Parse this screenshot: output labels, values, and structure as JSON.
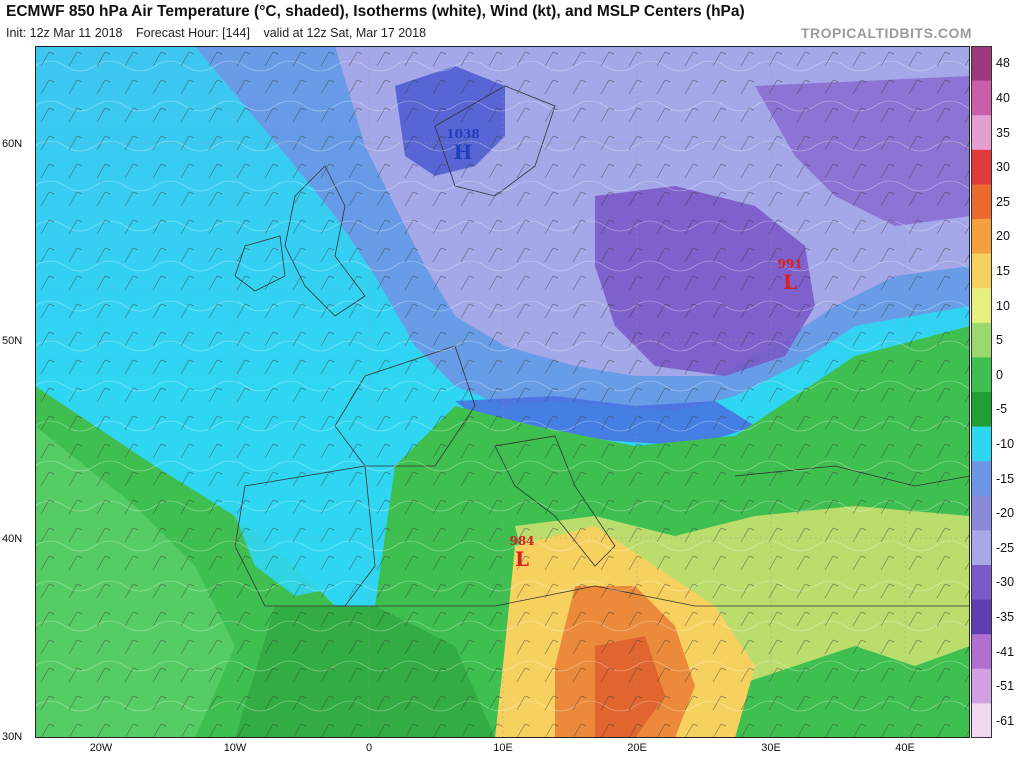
{
  "header": {
    "title": "ECMWF 850 hPa Air Temperature (°C, shaded), Isotherms (white), Wind (kt), and MSLP Centers (hPa)",
    "init": "Init: 12z Mar 11 2018",
    "forecast_hour": "Forecast Hour: [144]",
    "valid": "valid at 12z Sat, Mar 17 2018",
    "watermark": "TROPICALTIDBITS.COM"
  },
  "axes": {
    "lat_labels": [
      "60N",
      "50N",
      "40N",
      "30N"
    ],
    "lon_labels": [
      "20W",
      "10W",
      "0",
      "10E",
      "20E",
      "30E",
      "40E"
    ]
  },
  "colorbar": {
    "labels": [
      "48",
      "40",
      "35",
      "30",
      "25",
      "20",
      "15",
      "10",
      "5",
      "0",
      "-5",
      "-10",
      "-15",
      "-20",
      "-25",
      "-30",
      "-35",
      "-41",
      "-51",
      "-61"
    ],
    "colors": [
      "#9d3a7d",
      "#c85fa8",
      "#e49fd0",
      "#e23a3a",
      "#ea6a30",
      "#f2a040",
      "#f6d160",
      "#e6f080",
      "#9bd96e",
      "#3fbf50",
      "#1fa035",
      "#2fd6f2",
      "#6e96e6",
      "#8a8ad8",
      "#a8a8e8",
      "#7a5ac8",
      "#6040b0",
      "#b070d0",
      "#d0a0e0",
      "#f0d8f0"
    ]
  },
  "pressure_centers": [
    {
      "type": "H",
      "value": "1038",
      "color": "#1f3fbf"
    },
    {
      "type": "L",
      "value": "991",
      "color": "#d82020"
    },
    {
      "type": "L",
      "value": "984",
      "color": "#d82020"
    }
  ]
}
